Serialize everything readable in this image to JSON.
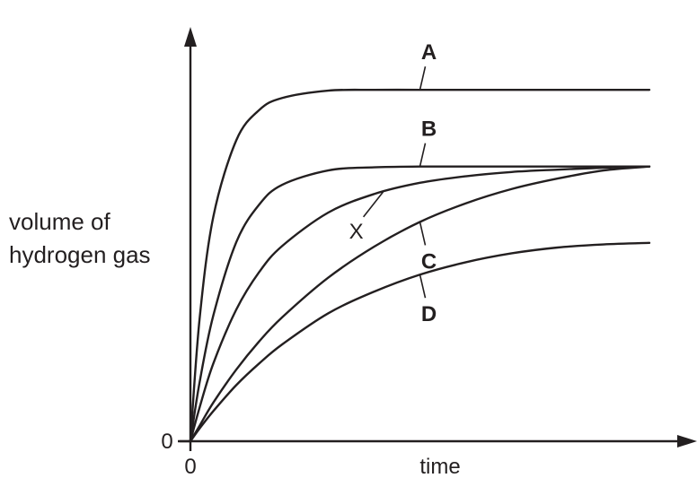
{
  "chart_data": {
    "type": "line",
    "xlabel": "time",
    "ylabel_lines": [
      "volume of",
      "hydrogen gas"
    ],
    "x_origin_label": "0",
    "y_origin_label": "0",
    "xlim": [
      0,
      1
    ],
    "ylim": [
      0,
      1
    ],
    "grid": false,
    "series": [
      {
        "name": "A",
        "x": [
          0,
          0.02,
          0.05,
          0.1,
          0.15,
          0.2,
          0.3,
          0.4,
          0.5,
          0.6,
          0.7,
          0.8,
          0.9,
          1.0
        ],
        "y": [
          0,
          0.316,
          0.58,
          0.777,
          0.855,
          0.886,
          0.905,
          0.907,
          0.907,
          0.907,
          0.907,
          0.907,
          0.907,
          0.907
        ]
      },
      {
        "name": "B",
        "x": [
          0,
          0.02,
          0.05,
          0.1,
          0.15,
          0.2,
          0.3,
          0.4,
          0.5,
          0.6,
          0.7,
          0.8,
          0.9,
          1.0
        ],
        "y": [
          0,
          0.152,
          0.325,
          0.514,
          0.611,
          0.662,
          0.699,
          0.707,
          0.709,
          0.709,
          0.709,
          0.709,
          0.709,
          0.709
        ]
      },
      {
        "name": "X",
        "x": [
          0,
          0.02,
          0.05,
          0.1,
          0.15,
          0.2,
          0.3,
          0.4,
          0.5,
          0.6,
          0.7,
          0.8,
          0.9,
          1.0
        ],
        "y": [
          0,
          0.087,
          0.201,
          0.34,
          0.437,
          0.504,
          0.59,
          0.638,
          0.667,
          0.684,
          0.695,
          0.701,
          0.706,
          0.709
        ]
      },
      {
        "name": "C",
        "x": [
          0,
          0.02,
          0.05,
          0.1,
          0.15,
          0.2,
          0.3,
          0.4,
          0.5,
          0.6,
          0.7,
          0.8,
          0.9,
          1.0
        ],
        "y": [
          0,
          0.04,
          0.1,
          0.185,
          0.258,
          0.32,
          0.422,
          0.502,
          0.566,
          0.614,
          0.651,
          0.678,
          0.699,
          0.709
        ]
      },
      {
        "name": "D",
        "x": [
          0,
          0.02,
          0.05,
          0.1,
          0.15,
          0.2,
          0.3,
          0.4,
          0.5,
          0.6,
          0.7,
          0.8,
          0.9,
          1.0
        ],
        "y": [
          0,
          0.033,
          0.078,
          0.145,
          0.201,
          0.25,
          0.33,
          0.386,
          0.43,
          0.462,
          0.485,
          0.5,
          0.508,
          0.512
        ]
      }
    ],
    "curve_labels": [
      {
        "text": "A",
        "series": "A",
        "at_x": 0.5
      },
      {
        "text": "B",
        "series": "B",
        "at_x": 0.5
      },
      {
        "text": "X",
        "series": "X",
        "at_x": 0.42
      },
      {
        "text": "C",
        "series": "C",
        "at_x": 0.5
      },
      {
        "text": "D",
        "series": "D",
        "at_x": 0.5
      }
    ]
  },
  "colors": {
    "ink": "#231f20",
    "background": "#ffffff"
  }
}
